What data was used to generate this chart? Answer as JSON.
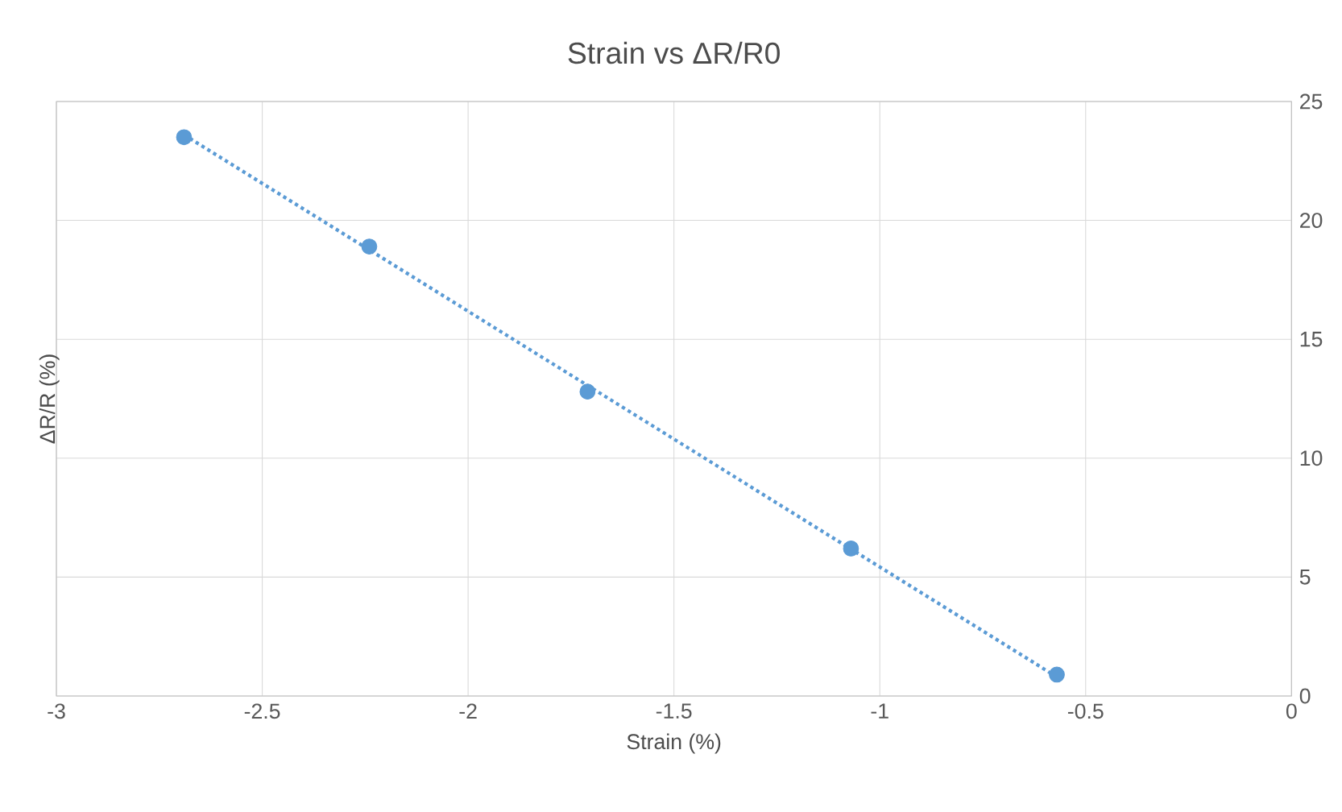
{
  "chart_data": {
    "type": "scatter",
    "title": "Strain vs ΔR/R0",
    "xlabel": "Strain (%)",
    "ylabel": "ΔR/R (%)",
    "xlim": [
      -3,
      0
    ],
    "xticks": [
      -3,
      -2.5,
      -2,
      -1.5,
      -1,
      -0.5,
      0
    ],
    "ylim": [
      0,
      25
    ],
    "yticks": [
      0,
      5,
      10,
      15,
      20,
      25
    ],
    "grid": true,
    "marker": "circle",
    "series": [
      {
        "color": "#5b9bd5",
        "x": [
          -2.69,
          -2.24,
          -1.71,
          -1.07,
          -0.57
        ],
        "values": [
          23.5,
          18.9,
          12.8,
          6.2,
          0.9
        ]
      },
      {
        "type": "line",
        "color": "#5b9bd5",
        "line_style": "dotted",
        "marker": "none",
        "x": [
          -2.69,
          -0.57
        ],
        "values": [
          23.6,
          0.8
        ]
      }
    ]
  }
}
